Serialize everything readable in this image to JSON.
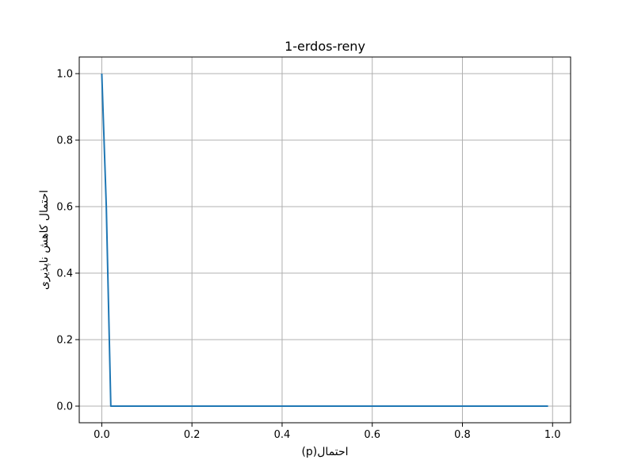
{
  "chart_data": {
    "type": "line",
    "title": "1-erdos-reny",
    "xlabel": "احتمال(p)",
    "ylabel": "احتمال کاهش ناپذیری",
    "xlim": [
      -0.05,
      1.04
    ],
    "ylim": [
      -0.05,
      1.05
    ],
    "xticks": [
      0.0,
      0.2,
      0.4,
      0.6,
      0.8,
      1.0
    ],
    "xtick_labels": [
      "0.0",
      "0.2",
      "0.4",
      "0.6",
      "0.8",
      "1.0"
    ],
    "yticks": [
      0.0,
      0.2,
      0.4,
      0.6,
      0.8,
      1.0
    ],
    "ytick_labels": [
      "0.0",
      "0.2",
      "0.4",
      "0.6",
      "0.8",
      "1.0"
    ],
    "grid": true,
    "series": [
      {
        "color": "#1f77b4",
        "x": [
          0.0,
          0.01,
          0.02,
          0.03,
          0.99
        ],
        "y": [
          1.0,
          0.6,
          0.0,
          0.0,
          0.0
        ]
      }
    ]
  }
}
